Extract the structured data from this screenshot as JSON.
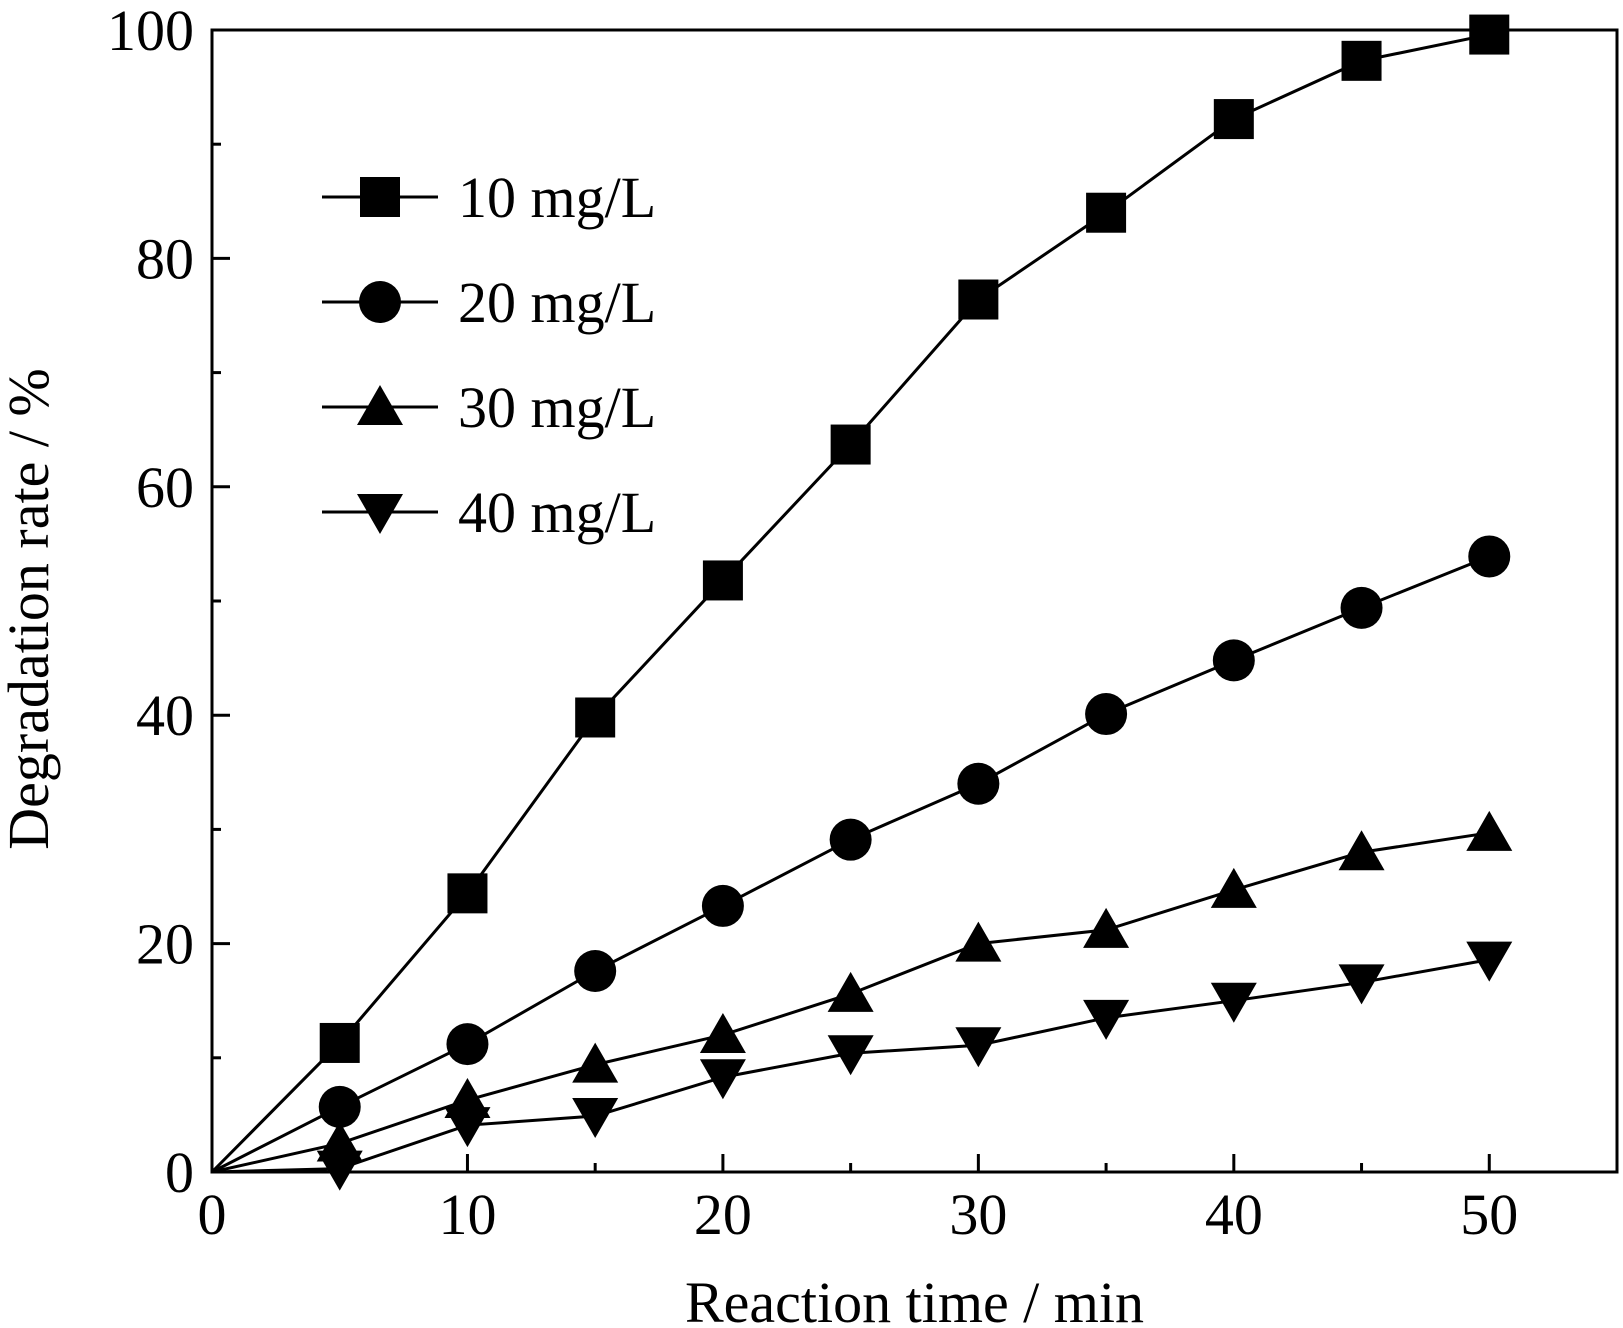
{
  "chart_data": {
    "type": "line",
    "title": "",
    "xlabel": "Reaction time / min",
    "ylabel": "Degradation rate / %",
    "xlim": [
      0,
      55
    ],
    "ylim": [
      0,
      100
    ],
    "xticks": [
      0,
      10,
      20,
      30,
      40,
      50
    ],
    "yticks": [
      0,
      20,
      40,
      60,
      80,
      100
    ],
    "grid": false,
    "legend_position": "top-left",
    "x": [
      0,
      5,
      10,
      15,
      20,
      25,
      30,
      35,
      40,
      45,
      50
    ],
    "series": [
      {
        "name": "10 mg/L",
        "marker": "square",
        "values": [
          0,
          11.3,
          24.4,
          39.8,
          51.8,
          63.7,
          76.4,
          84.0,
          92.2,
          97.3,
          99.6
        ]
      },
      {
        "name": "20 mg/L",
        "marker": "circle",
        "values": [
          0,
          5.7,
          11.2,
          17.6,
          23.3,
          29.1,
          34.0,
          40.1,
          44.8,
          49.4,
          53.9
        ]
      },
      {
        "name": "30 mg/L",
        "marker": "triangle-up",
        "values": [
          0,
          2.5,
          6.3,
          9.4,
          12.0,
          15.6,
          20.0,
          21.2,
          24.7,
          28.0,
          29.7
        ]
      },
      {
        "name": "40 mg/L",
        "marker": "triangle-down",
        "values": [
          0,
          0.3,
          4.1,
          4.9,
          8.3,
          10.4,
          11.1,
          13.5,
          15.0,
          16.6,
          18.6
        ]
      }
    ]
  }
}
